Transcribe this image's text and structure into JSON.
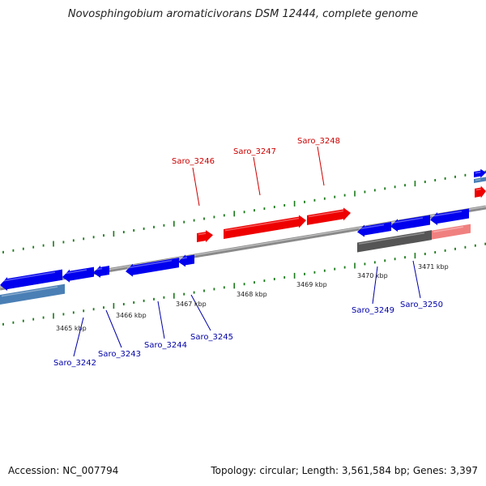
{
  "title": "Novosphingobium aromaticivorans DSM 12444, complete genome",
  "footer": {
    "accession": "Accession: NC_007794",
    "stats": "Topology: circular; Length: 3,561,584 bp; Genes: 3,397"
  },
  "colors": {
    "forward": "#ee0000",
    "reverse": "#0000ee",
    "forward_label": "#cc0000",
    "reverse_label": "#0000aa",
    "rna_reverse": "#4a7fb5",
    "pseudo": "#555555",
    "pseudo_light": "#f08080",
    "backbone": "#8a8a8a",
    "tick": "#1a7a1a"
  },
  "scale_labels": [
    "3465 kbp",
    "3466 kbp",
    "3467 kbp",
    "3468 kbp",
    "3469 kbp",
    "3470 kbp",
    "3471 kbp"
  ],
  "gene_labels": [
    {
      "name": "Saro_3246",
      "strand": "forward"
    },
    {
      "name": "Saro_3247",
      "strand": "forward"
    },
    {
      "name": "Saro_3248",
      "strand": "forward"
    },
    {
      "name": "Saro_3242",
      "strand": "reverse"
    },
    {
      "name": "Saro_3243",
      "strand": "reverse"
    },
    {
      "name": "Saro_3244",
      "strand": "reverse"
    },
    {
      "name": "Saro_3245",
      "strand": "reverse"
    },
    {
      "name": "Saro_3249",
      "strand": "reverse"
    },
    {
      "name": "Saro_3250",
      "strand": "reverse"
    }
  ]
}
